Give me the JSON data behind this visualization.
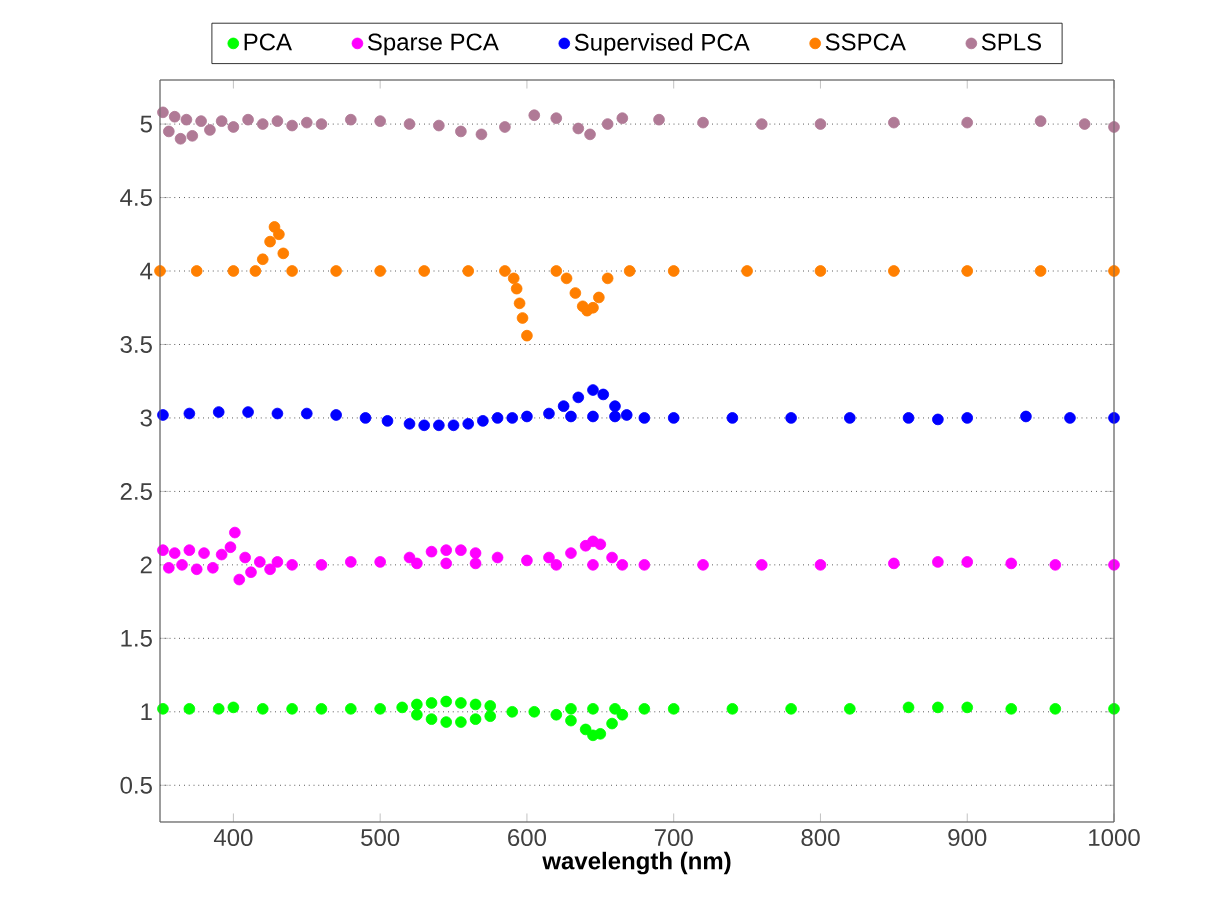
{
  "chart_data": {
    "type": "scatter",
    "xlabel": "wavelength (nm)",
    "xlim": [
      350,
      1000
    ],
    "xticks": [
      400,
      500,
      600,
      700,
      800,
      900,
      1000
    ],
    "ylim": [
      0.25,
      5.3
    ],
    "yticks": [
      0.5,
      1,
      1.5,
      2,
      2.5,
      3,
      3.5,
      4,
      4.5,
      5
    ],
    "grid": "y",
    "legend": "top",
    "series": [
      {
        "name": "PCA",
        "color": "#00ff00",
        "x": [
          352,
          370,
          390,
          400,
          420,
          440,
          460,
          480,
          500,
          515,
          525,
          535,
          545,
          555,
          565,
          575,
          525,
          535,
          545,
          555,
          565,
          575,
          590,
          605,
          620,
          630,
          640,
          645,
          650,
          658,
          665,
          630,
          645,
          660,
          680,
          700,
          740,
          780,
          820,
          860,
          880,
          900,
          930,
          960,
          1000
        ],
        "values": [
          1.02,
          1.02,
          1.02,
          1.03,
          1.02,
          1.02,
          1.02,
          1.02,
          1.02,
          1.03,
          1.05,
          1.06,
          1.07,
          1.06,
          1.05,
          1.04,
          0.98,
          0.95,
          0.93,
          0.93,
          0.95,
          0.97,
          1.0,
          1.0,
          0.98,
          0.94,
          0.88,
          0.84,
          0.85,
          0.92,
          0.98,
          1.02,
          1.02,
          1.02,
          1.02,
          1.02,
          1.02,
          1.02,
          1.02,
          1.03,
          1.03,
          1.03,
          1.02,
          1.02,
          1.02
        ]
      },
      {
        "name": "Sparse PCA",
        "color": "#ff00ff",
        "x": [
          352,
          356,
          360,
          365,
          370,
          375,
          380,
          386,
          392,
          398,
          401,
          404,
          408,
          412,
          418,
          425,
          430,
          440,
          460,
          480,
          500,
          520,
          535,
          545,
          555,
          565,
          580,
          525,
          545,
          565,
          600,
          615,
          630,
          640,
          645,
          650,
          658,
          665,
          620,
          645,
          680,
          720,
          760,
          800,
          850,
          880,
          900,
          930,
          960,
          1000
        ],
        "values": [
          2.1,
          1.98,
          2.08,
          2.0,
          2.1,
          1.97,
          2.08,
          1.98,
          2.07,
          2.12,
          2.22,
          1.9,
          2.05,
          1.95,
          2.02,
          1.97,
          2.02,
          2.0,
          2.0,
          2.02,
          2.02,
          2.05,
          2.09,
          2.1,
          2.1,
          2.08,
          2.05,
          2.01,
          2.01,
          2.01,
          2.03,
          2.05,
          2.08,
          2.13,
          2.16,
          2.14,
          2.05,
          2.0,
          2.0,
          2.0,
          2.0,
          2.0,
          2.0,
          2.0,
          2.01,
          2.02,
          2.02,
          2.01,
          2.0,
          2.0
        ]
      },
      {
        "name": "Supervised PCA",
        "color": "#0000ff",
        "x": [
          352,
          370,
          390,
          410,
          430,
          450,
          470,
          490,
          505,
          520,
          530,
          540,
          550,
          560,
          570,
          580,
          590,
          600,
          615,
          625,
          635,
          645,
          652,
          660,
          668,
          630,
          645,
          660,
          680,
          700,
          740,
          780,
          820,
          860,
          880,
          900,
          940,
          970,
          1000
        ],
        "values": [
          3.02,
          3.03,
          3.04,
          3.04,
          3.03,
          3.03,
          3.02,
          3.0,
          2.98,
          2.96,
          2.95,
          2.95,
          2.95,
          2.96,
          2.98,
          3.0,
          3.0,
          3.01,
          3.03,
          3.08,
          3.14,
          3.19,
          3.16,
          3.08,
          3.02,
          3.01,
          3.01,
          3.01,
          3.0,
          3.0,
          3.0,
          3.0,
          3.0,
          3.0,
          2.99,
          3.0,
          3.01,
          3.0,
          3.0
        ]
      },
      {
        "name": "SSPCA",
        "color": "#ff7f00",
        "x": [
          350,
          375,
          400,
          415,
          420,
          425,
          428,
          431,
          434,
          440,
          470,
          500,
          530,
          560,
          585,
          591,
          593,
          595,
          597,
          600,
          620,
          627,
          633,
          638,
          641,
          645,
          649,
          655,
          670,
          700,
          750,
          800,
          850,
          900,
          950,
          1000
        ],
        "values": [
          4.0,
          4.0,
          4.0,
          4.0,
          4.08,
          4.2,
          4.3,
          4.25,
          4.12,
          4.0,
          4.0,
          4.0,
          4.0,
          4.0,
          4.0,
          3.95,
          3.88,
          3.78,
          3.68,
          3.56,
          4.0,
          3.95,
          3.85,
          3.76,
          3.73,
          3.75,
          3.82,
          3.95,
          4.0,
          4.0,
          4.0,
          4.0,
          4.0,
          4.0,
          4.0,
          4.0
        ]
      },
      {
        "name": "SPLS",
        "color": "#b07a96",
        "x": [
          352,
          356,
          360,
          364,
          368,
          372,
          378,
          384,
          392,
          400,
          410,
          420,
          430,
          440,
          450,
          460,
          480,
          500,
          520,
          540,
          555,
          569,
          585,
          605,
          620,
          635,
          643,
          655,
          665,
          690,
          720,
          760,
          800,
          850,
          900,
          950,
          980,
          1000
        ],
        "values": [
          5.08,
          4.95,
          5.05,
          4.9,
          5.03,
          4.92,
          5.02,
          4.96,
          5.02,
          4.98,
          5.03,
          5.0,
          5.02,
          4.99,
          5.01,
          5.0,
          5.03,
          5.02,
          5.0,
          4.99,
          4.95,
          4.93,
          4.98,
          5.06,
          5.04,
          4.97,
          4.93,
          5.0,
          5.04,
          5.03,
          5.01,
          5.0,
          5.0,
          5.01,
          5.01,
          5.02,
          5.0,
          4.98
        ]
      }
    ]
  }
}
